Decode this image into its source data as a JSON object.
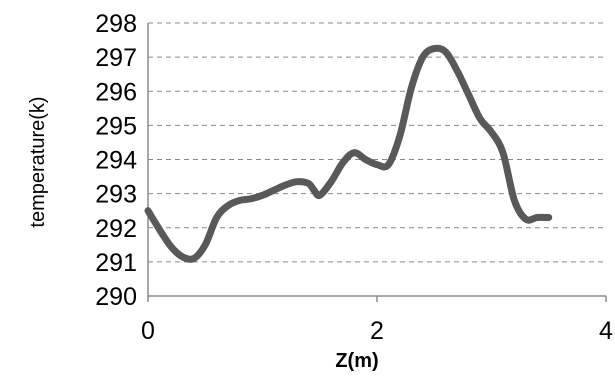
{
  "chart_data": {
    "type": "line",
    "title": "",
    "xlabel": "Z(m)",
    "ylabel": "temperature(k)",
    "xlim": [
      0,
      4
    ],
    "ylim": [
      290,
      298
    ],
    "xticks": [
      0,
      2,
      4
    ],
    "yticks": [
      290,
      291,
      292,
      293,
      294,
      295,
      296,
      297,
      298
    ],
    "x_tick_labels": [
      "0",
      "2",
      "4"
    ],
    "y_tick_labels": [
      "290",
      "291",
      "292",
      "293",
      "294",
      "295",
      "296",
      "297",
      "298"
    ],
    "grid": "horizontal dashed",
    "legend": "none",
    "series": [
      {
        "color": "#595959",
        "x": [
          0.0,
          0.1,
          0.2,
          0.3,
          0.4,
          0.5,
          0.6,
          0.7,
          0.8,
          0.9,
          1.0,
          1.1,
          1.2,
          1.3,
          1.4,
          1.45,
          1.5,
          1.6,
          1.7,
          1.8,
          1.9,
          2.0,
          2.1,
          2.2,
          2.3,
          2.4,
          2.5,
          2.6,
          2.7,
          2.8,
          2.9,
          3.0,
          3.1,
          3.2,
          3.3,
          3.4,
          3.5
        ],
        "y": [
          292.5,
          291.95,
          291.45,
          291.15,
          291.1,
          291.5,
          292.3,
          292.65,
          292.8,
          292.85,
          292.95,
          293.1,
          293.25,
          293.35,
          293.3,
          293.1,
          292.95,
          293.35,
          293.9,
          294.2,
          294.0,
          293.85,
          293.85,
          294.7,
          296.1,
          297.0,
          297.25,
          297.15,
          296.6,
          295.9,
          295.2,
          294.8,
          294.2,
          292.8,
          292.25,
          292.3,
          292.3
        ]
      }
    ]
  }
}
